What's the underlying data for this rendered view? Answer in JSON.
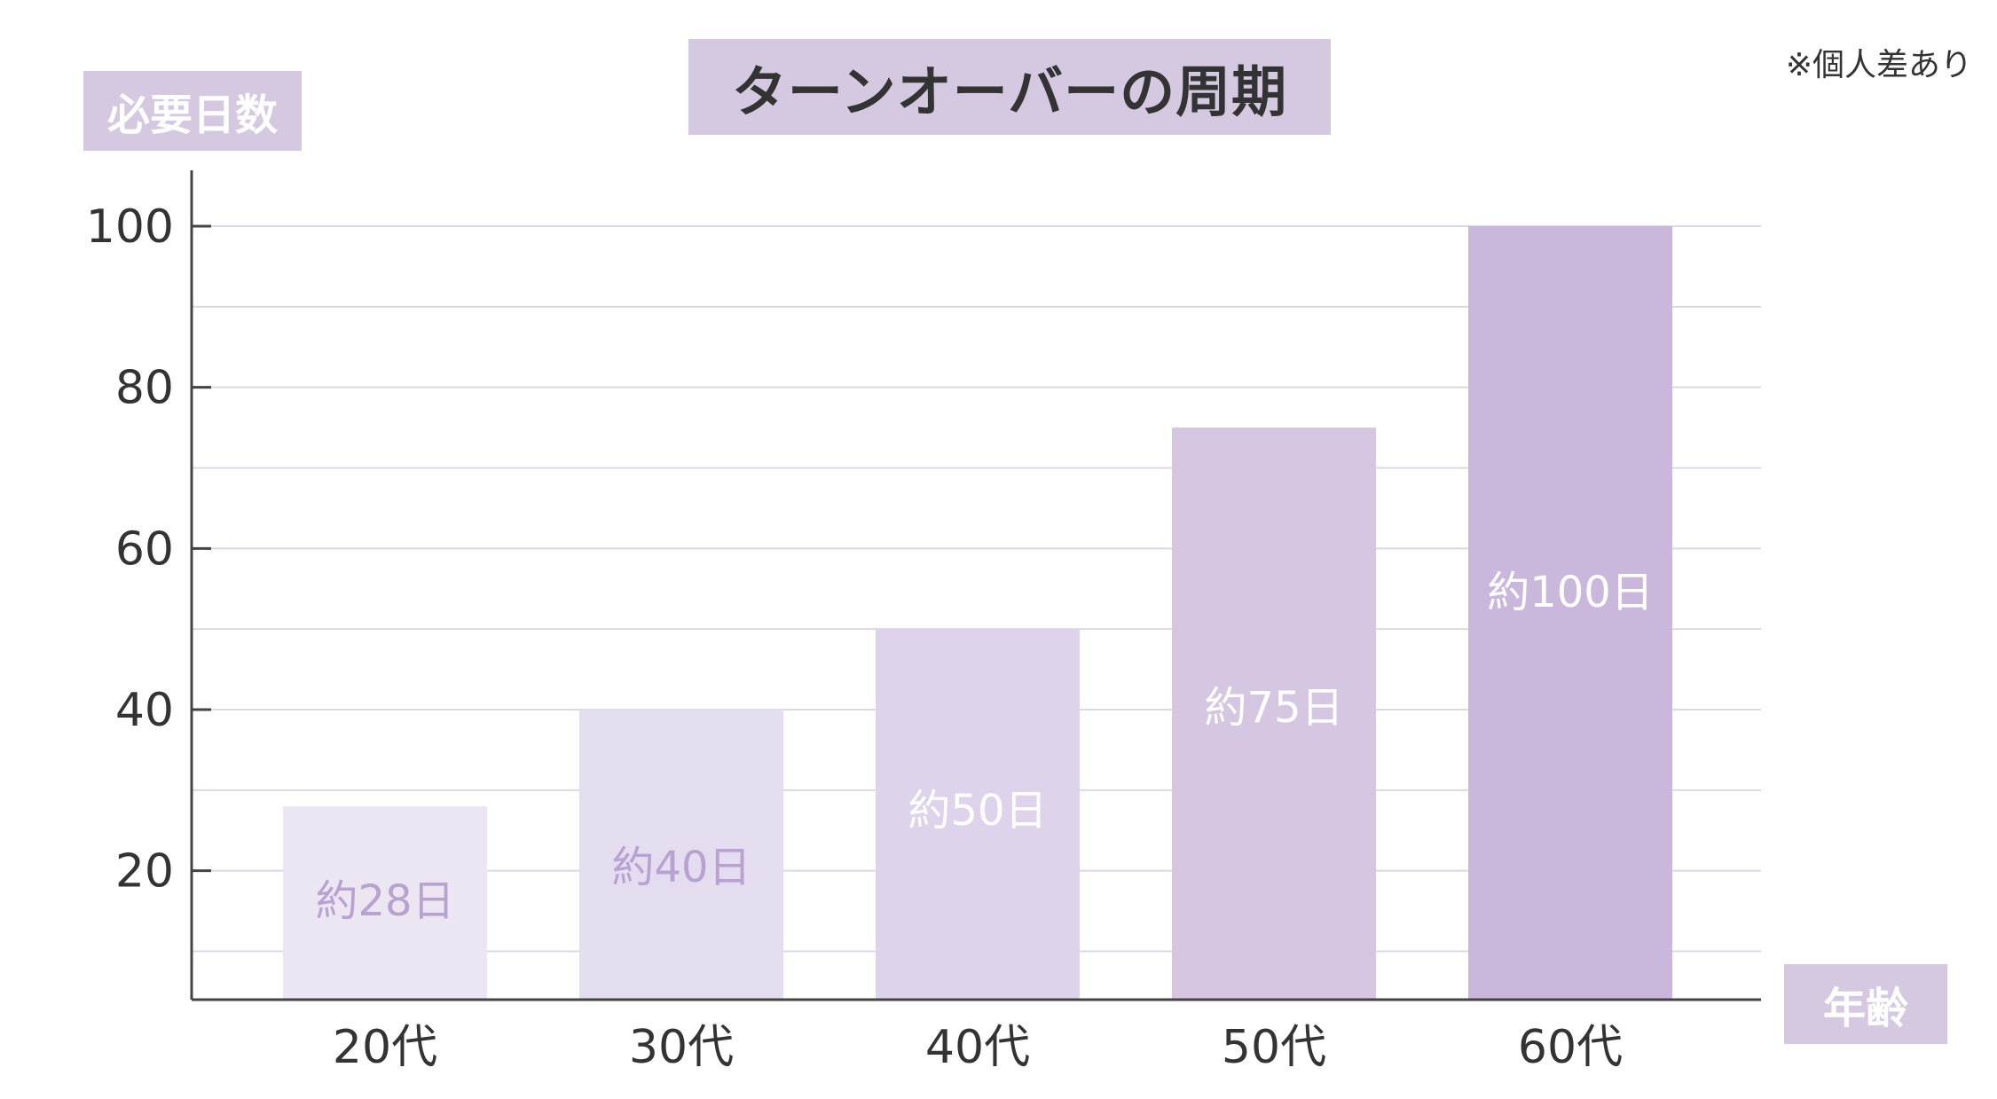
{
  "note": "※個人差あり",
  "chart_data": {
    "type": "bar",
    "title": "ターンオーバーの周期",
    "ylabel": "必要日数",
    "xlabel": "年齢",
    "categories": [
      "20代",
      "30代",
      "40代",
      "50代",
      "60代"
    ],
    "values": [
      28,
      40,
      50,
      75,
      100
    ],
    "data_labels": [
      "約28日",
      "約40日",
      "約50日",
      "約75日",
      "約100日"
    ],
    "yticks": [
      20,
      40,
      60,
      80,
      100
    ],
    "ylim": [
      4,
      100
    ],
    "grid": true,
    "bar_colors": [
      "#ebe6f2",
      "#e4dcef",
      "#ddd3ea",
      "#d5c7e2",
      "#c9b8dc"
    ],
    "data_label_colors": [
      "#b7a2d2",
      "#b7a2d2",
      "#ffffff",
      "#ffffff",
      "#ffffff"
    ],
    "grid_color": "#dcd7e6",
    "axis_color": "#444444",
    "text_color": "#333333"
  }
}
